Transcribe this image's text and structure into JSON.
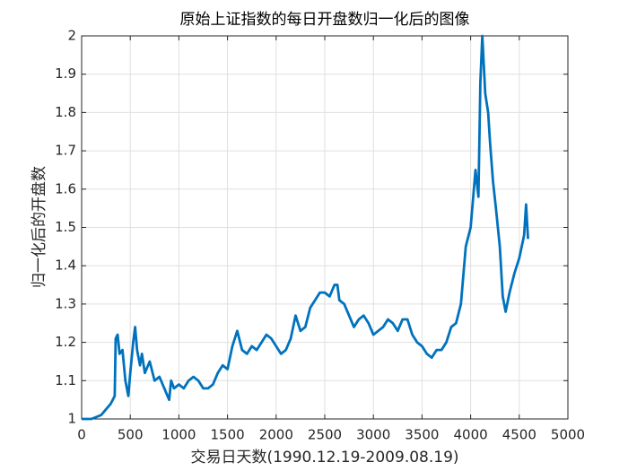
{
  "chart_data": {
    "type": "line",
    "title": "原始上证指数的每日开盘数归一化后的图像",
    "x_label": "交易日天数(1990.12.19-2009.08.19)",
    "y_label": "归一化后的开盘数",
    "x": [
      0,
      100,
      200,
      300,
      340,
      350,
      370,
      390,
      420,
      450,
      480,
      500,
      530,
      550,
      570,
      600,
      620,
      650,
      700,
      750,
      800,
      850,
      900,
      920,
      950,
      1000,
      1050,
      1100,
      1150,
      1200,
      1250,
      1300,
      1350,
      1400,
      1450,
      1500,
      1550,
      1600,
      1650,
      1700,
      1750,
      1800,
      1850,
      1900,
      1950,
      2000,
      2050,
      2100,
      2150,
      2200,
      2250,
      2300,
      2350,
      2400,
      2450,
      2500,
      2550,
      2600,
      2630,
      2650,
      2700,
      2750,
      2800,
      2850,
      2900,
      2950,
      3000,
      3050,
      3100,
      3150,
      3200,
      3250,
      3300,
      3350,
      3400,
      3450,
      3500,
      3550,
      3600,
      3650,
      3700,
      3750,
      3800,
      3850,
      3900,
      3950,
      4000,
      4050,
      4080,
      4100,
      4120,
      4150,
      4180,
      4200,
      4230,
      4260,
      4300,
      4330,
      4360,
      4400,
      4450,
      4500,
      4550,
      4570,
      4590
    ],
    "series": [
      {
        "name": "开盘数",
        "color": "#0072bd",
        "values": [
          1.0,
          1.0,
          1.01,
          1.04,
          1.06,
          1.21,
          1.22,
          1.17,
          1.18,
          1.1,
          1.06,
          1.12,
          1.2,
          1.24,
          1.18,
          1.14,
          1.17,
          1.12,
          1.15,
          1.1,
          1.11,
          1.08,
          1.05,
          1.1,
          1.08,
          1.09,
          1.08,
          1.1,
          1.11,
          1.1,
          1.08,
          1.08,
          1.09,
          1.12,
          1.14,
          1.13,
          1.19,
          1.23,
          1.18,
          1.17,
          1.19,
          1.18,
          1.2,
          1.22,
          1.21,
          1.19,
          1.17,
          1.18,
          1.21,
          1.27,
          1.23,
          1.24,
          1.29,
          1.31,
          1.33,
          1.33,
          1.32,
          1.35,
          1.35,
          1.31,
          1.3,
          1.27,
          1.24,
          1.26,
          1.27,
          1.25,
          1.22,
          1.23,
          1.24,
          1.26,
          1.25,
          1.23,
          1.26,
          1.26,
          1.22,
          1.2,
          1.19,
          1.17,
          1.16,
          1.18,
          1.18,
          1.2,
          1.24,
          1.25,
          1.3,
          1.45,
          1.5,
          1.65,
          1.58,
          1.88,
          2.0,
          1.85,
          1.8,
          1.72,
          1.62,
          1.55,
          1.45,
          1.32,
          1.28,
          1.33,
          1.38,
          1.42,
          1.48,
          1.56,
          1.47
        ]
      }
    ],
    "xlim": [
      0,
      5000
    ],
    "xticks": [
      0,
      500,
      1000,
      1500,
      2000,
      2500,
      3000,
      3500,
      4000,
      4500,
      5000
    ],
    "ylim": [
      1,
      2
    ],
    "yticks": [
      1,
      1.1,
      1.2,
      1.3,
      1.4,
      1.5,
      1.6,
      1.7,
      1.8,
      1.9,
      2
    ],
    "grid": true
  }
}
